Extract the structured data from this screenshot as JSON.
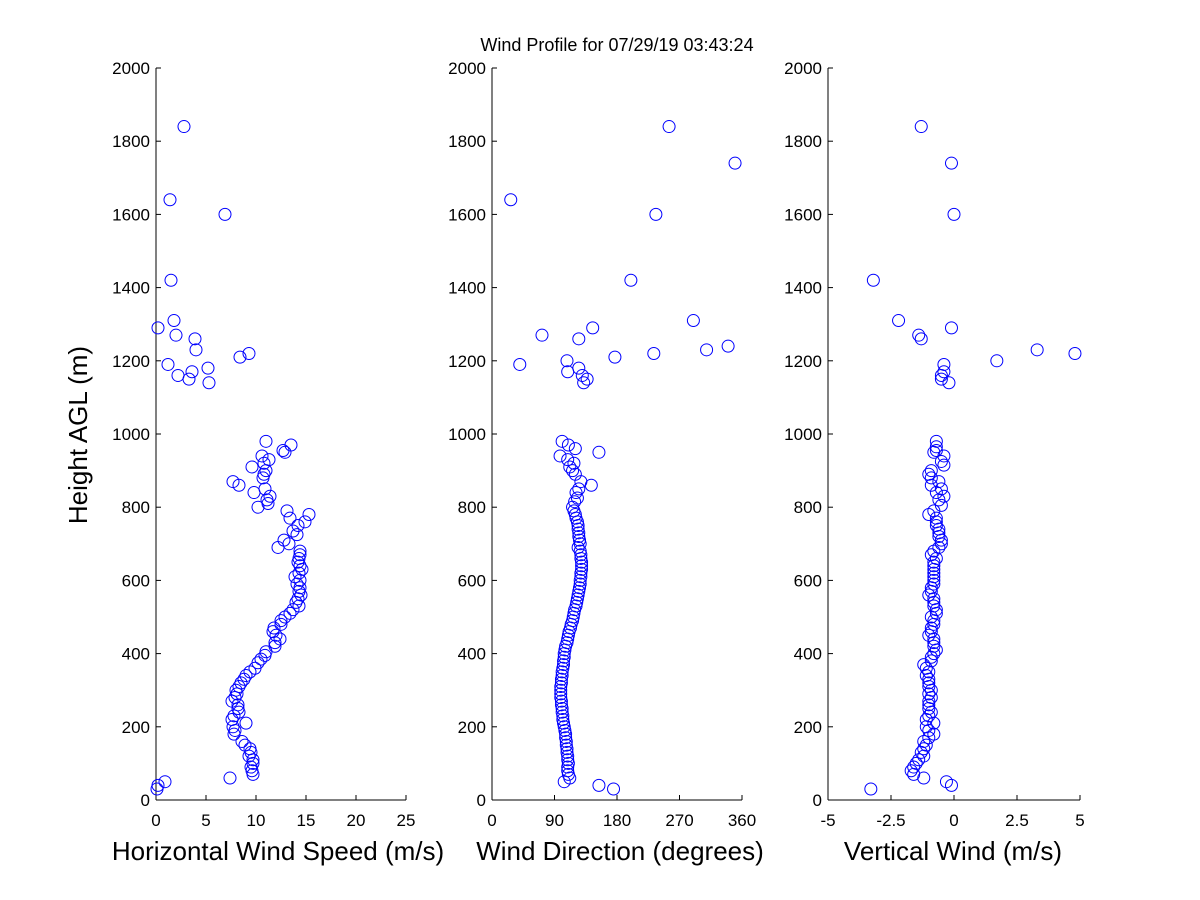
{
  "figure": {
    "title": "Wind Profile for  07/29/19 03:43:24",
    "background": "#ffffff",
    "marker_color": "#0000ff"
  },
  "chart_data": [
    {
      "type": "scatter",
      "xlabel": "Horizontal Wind Speed (m/s)",
      "ylabel": "Height AGL (m)",
      "xlim": [
        0,
        25
      ],
      "ylim": [
        0,
        2000
      ],
      "xticks": [
        0,
        5,
        10,
        15,
        20,
        25
      ],
      "yticks": [
        0,
        200,
        400,
        600,
        800,
        1000,
        1200,
        1400,
        1600,
        1800,
        2000
      ],
      "grid": false,
      "points": [
        [
          2.8,
          1840
        ],
        [
          6.9,
          1600
        ],
        [
          1.4,
          1640
        ],
        [
          1.5,
          1420
        ],
        [
          1.8,
          1310
        ],
        [
          0.2,
          1290
        ],
        [
          2.0,
          1270
        ],
        [
          3.9,
          1260
        ],
        [
          4.0,
          1230
        ],
        [
          9.3,
          1220
        ],
        [
          8.4,
          1210
        ],
        [
          1.2,
          1190
        ],
        [
          5.2,
          1180
        ],
        [
          3.6,
          1170
        ],
        [
          2.2,
          1160
        ],
        [
          3.3,
          1150
        ],
        [
          5.3,
          1140
        ],
        [
          11.0,
          980
        ],
        [
          13.5,
          970
        ],
        [
          12.7,
          955
        ],
        [
          12.9,
          950
        ],
        [
          10.6,
          940
        ],
        [
          11.3,
          930
        ],
        [
          10.8,
          920
        ],
        [
          9.6,
          910
        ],
        [
          11.0,
          900
        ],
        [
          10.8,
          890
        ],
        [
          10.7,
          880
        ],
        [
          7.7,
          870
        ],
        [
          8.3,
          860
        ],
        [
          10.9,
          850
        ],
        [
          9.8,
          840
        ],
        [
          11.4,
          830
        ],
        [
          11.1,
          820
        ],
        [
          11.2,
          810
        ],
        [
          10.2,
          800
        ],
        [
          13.1,
          790
        ],
        [
          15.3,
          780
        ],
        [
          13.4,
          770
        ],
        [
          14.9,
          760
        ],
        [
          14.2,
          750
        ],
        [
          13.7,
          735
        ],
        [
          14.1,
          725
        ],
        [
          12.8,
          710
        ],
        [
          13.3,
          700
        ],
        [
          12.2,
          690
        ],
        [
          14.4,
          680
        ],
        [
          14.4,
          670
        ],
        [
          14.3,
          660
        ],
        [
          14.2,
          650
        ],
        [
          14.4,
          640
        ],
        [
          14.6,
          630
        ],
        [
          14.3,
          620
        ],
        [
          13.9,
          610
        ],
        [
          14.4,
          600
        ],
        [
          14.1,
          590
        ],
        [
          14.4,
          580
        ],
        [
          14.3,
          570
        ],
        [
          14.5,
          560
        ],
        [
          14.2,
          550
        ],
        [
          14.0,
          540
        ],
        [
          14.3,
          530
        ],
        [
          13.7,
          520
        ],
        [
          13.4,
          510
        ],
        [
          12.9,
          500
        ],
        [
          12.5,
          490
        ],
        [
          12.5,
          480
        ],
        [
          11.8,
          470
        ],
        [
          11.7,
          460
        ],
        [
          12.0,
          450
        ],
        [
          12.4,
          440
        ],
        [
          11.9,
          430
        ],
        [
          11.9,
          420
        ],
        [
          11.0,
          405
        ],
        [
          10.9,
          395
        ],
        [
          10.5,
          385
        ],
        [
          10.2,
          375
        ],
        [
          9.9,
          360
        ],
        [
          9.4,
          350
        ],
        [
          9.0,
          340
        ],
        [
          8.8,
          330
        ],
        [
          8.5,
          320
        ],
        [
          8.3,
          310
        ],
        [
          8.0,
          300
        ],
        [
          8.1,
          290
        ],
        [
          7.9,
          280
        ],
        [
          7.6,
          270
        ],
        [
          8.2,
          260
        ],
        [
          8.2,
          250
        ],
        [
          8.3,
          240
        ],
        [
          7.8,
          230
        ],
        [
          7.6,
          220
        ],
        [
          9.0,
          210
        ],
        [
          7.7,
          200
        ],
        [
          7.9,
          190
        ],
        [
          7.8,
          180
        ],
        [
          8.6,
          160
        ],
        [
          8.9,
          150
        ],
        [
          9.4,
          140
        ],
        [
          9.5,
          130
        ],
        [
          9.3,
          120
        ],
        [
          9.7,
          110
        ],
        [
          9.7,
          100
        ],
        [
          9.5,
          90
        ],
        [
          9.6,
          80
        ],
        [
          9.7,
          70
        ],
        [
          7.4,
          60
        ],
        [
          0.9,
          50
        ],
        [
          0.2,
          40
        ],
        [
          0.1,
          30
        ]
      ]
    },
    {
      "type": "scatter",
      "xlabel": "Wind Direction (degrees)",
      "ylabel": "",
      "xlim": [
        0,
        360
      ],
      "ylim": [
        0,
        2000
      ],
      "xticks": [
        0,
        90,
        180,
        270,
        360
      ],
      "yticks": [
        0,
        200,
        400,
        600,
        800,
        1000,
        1200,
        1400,
        1600,
        1800,
        2000
      ],
      "grid": false,
      "points": [
        [
          255,
          1840
        ],
        [
          350,
          1740
        ],
        [
          27,
          1640
        ],
        [
          236,
          1600
        ],
        [
          200,
          1420
        ],
        [
          290,
          1310
        ],
        [
          145,
          1290
        ],
        [
          72,
          1270
        ],
        [
          125,
          1260
        ],
        [
          340,
          1240
        ],
        [
          309,
          1230
        ],
        [
          233,
          1220
        ],
        [
          177,
          1210
        ],
        [
          108,
          1200
        ],
        [
          40,
          1190
        ],
        [
          125,
          1180
        ],
        [
          109,
          1170
        ],
        [
          130,
          1160
        ],
        [
          137,
          1150
        ],
        [
          132,
          1140
        ],
        [
          101,
          980
        ],
        [
          110,
          970
        ],
        [
          120,
          960
        ],
        [
          154,
          950
        ],
        [
          98,
          940
        ],
        [
          109,
          930
        ],
        [
          118,
          920
        ],
        [
          112,
          910
        ],
        [
          116,
          900
        ],
        [
          120,
          890
        ],
        [
          128,
          870
        ],
        [
          143,
          860
        ],
        [
          125,
          850
        ],
        [
          121,
          840
        ],
        [
          123,
          825
        ],
        [
          119,
          815
        ],
        [
          116,
          800
        ],
        [
          118,
          790
        ],
        [
          120,
          780
        ],
        [
          121,
          770
        ],
        [
          123,
          760
        ],
        [
          124,
          750
        ],
        [
          124,
          740
        ],
        [
          125,
          730
        ],
        [
          125,
          720
        ],
        [
          126,
          710
        ],
        [
          127,
          700
        ],
        [
          124,
          690
        ],
        [
          127,
          680
        ],
        [
          128,
          670
        ],
        [
          128,
          660
        ],
        [
          129,
          650
        ],
        [
          129,
          640
        ],
        [
          129,
          630
        ],
        [
          128,
          620
        ],
        [
          128,
          610
        ],
        [
          127,
          600
        ],
        [
          127,
          590
        ],
        [
          126,
          580
        ],
        [
          125,
          570
        ],
        [
          124,
          560
        ],
        [
          123,
          550
        ],
        [
          122,
          540
        ],
        [
          121,
          530
        ],
        [
          119,
          520
        ],
        [
          118,
          510
        ],
        [
          117,
          500
        ],
        [
          116,
          490
        ],
        [
          114,
          480
        ],
        [
          113,
          470
        ],
        [
          111,
          460
        ],
        [
          110,
          450
        ],
        [
          109,
          440
        ],
        [
          108,
          430
        ],
        [
          106,
          420
        ],
        [
          105,
          410
        ],
        [
          104,
          400
        ],
        [
          104,
          390
        ],
        [
          103,
          380
        ],
        [
          103,
          370
        ],
        [
          102,
          360
        ],
        [
          101,
          350
        ],
        [
          101,
          340
        ],
        [
          100,
          330
        ],
        [
          100,
          320
        ],
        [
          99,
          310
        ],
        [
          99,
          300
        ],
        [
          99,
          290
        ],
        [
          99,
          280
        ],
        [
          100,
          270
        ],
        [
          100,
          260
        ],
        [
          101,
          250
        ],
        [
          101,
          240
        ],
        [
          102,
          230
        ],
        [
          102,
          220
        ],
        [
          103,
          210
        ],
        [
          104,
          200
        ],
        [
          105,
          190
        ],
        [
          106,
          180
        ],
        [
          106,
          170
        ],
        [
          107,
          160
        ],
        [
          107,
          150
        ],
        [
          108,
          140
        ],
        [
          108,
          130
        ],
        [
          109,
          120
        ],
        [
          109,
          110
        ],
        [
          110,
          100
        ],
        [
          109,
          90
        ],
        [
          109,
          80
        ],
        [
          110,
          70
        ],
        [
          112,
          60
        ],
        [
          104,
          50
        ],
        [
          154,
          40
        ],
        [
          175,
          30
        ]
      ]
    },
    {
      "type": "scatter",
      "xlabel": "Vertical Wind (m/s)",
      "ylabel": "",
      "xlim": [
        -5,
        5
      ],
      "ylim": [
        0,
        2000
      ],
      "xticks": [
        -5,
        -2.5,
        0,
        2.5,
        5
      ],
      "yticks": [
        0,
        200,
        400,
        600,
        800,
        1000,
        1200,
        1400,
        1600,
        1800,
        2000
      ],
      "grid": false,
      "points": [
        [
          -1.3,
          1840
        ],
        [
          -0.1,
          1740
        ],
        [
          0.0,
          1600
        ],
        [
          -3.2,
          1420
        ],
        [
          -2.2,
          1310
        ],
        [
          -0.1,
          1290
        ],
        [
          -1.4,
          1270
        ],
        [
          -1.3,
          1260
        ],
        [
          3.3,
          1230
        ],
        [
          4.8,
          1220
        ],
        [
          1.7,
          1200
        ],
        [
          -0.4,
          1190
        ],
        [
          -0.4,
          1170
        ],
        [
          -0.5,
          1160
        ],
        [
          -0.5,
          1150
        ],
        [
          -0.2,
          1140
        ],
        [
          -0.7,
          980
        ],
        [
          -0.7,
          965
        ],
        [
          -0.7,
          955
        ],
        [
          -0.8,
          950
        ],
        [
          -0.4,
          940
        ],
        [
          -0.5,
          925
        ],
        [
          -0.4,
          915
        ],
        [
          -0.9,
          900
        ],
        [
          -1.0,
          890
        ],
        [
          -0.9,
          880
        ],
        [
          -0.6,
          870
        ],
        [
          -0.9,
          860
        ],
        [
          -0.5,
          850
        ],
        [
          -0.7,
          840
        ],
        [
          -0.4,
          830
        ],
        [
          -0.6,
          820
        ],
        [
          -0.5,
          805
        ],
        [
          -0.8,
          790
        ],
        [
          -1.0,
          780
        ],
        [
          -0.7,
          770
        ],
        [
          -0.7,
          760
        ],
        [
          -0.7,
          750
        ],
        [
          -0.6,
          740
        ],
        [
          -0.6,
          730
        ],
        [
          -0.6,
          720
        ],
        [
          -0.5,
          710
        ],
        [
          -0.5,
          700
        ],
        [
          -0.6,
          690
        ],
        [
          -0.8,
          680
        ],
        [
          -0.9,
          670
        ],
        [
          -0.7,
          660
        ],
        [
          -0.8,
          650
        ],
        [
          -0.8,
          640
        ],
        [
          -0.8,
          630
        ],
        [
          -0.8,
          620
        ],
        [
          -0.8,
          610
        ],
        [
          -0.8,
          600
        ],
        [
          -0.8,
          590
        ],
        [
          -0.9,
          580
        ],
        [
          -0.9,
          570
        ],
        [
          -1.0,
          560
        ],
        [
          -0.8,
          550
        ],
        [
          -0.8,
          540
        ],
        [
          -0.8,
          530
        ],
        [
          -0.7,
          520
        ],
        [
          -0.7,
          510
        ],
        [
          -0.9,
          500
        ],
        [
          -0.8,
          490
        ],
        [
          -0.8,
          480
        ],
        [
          -0.9,
          470
        ],
        [
          -0.9,
          460
        ],
        [
          -1.0,
          450
        ],
        [
          -0.8,
          440
        ],
        [
          -0.8,
          430
        ],
        [
          -0.8,
          420
        ],
        [
          -0.7,
          410
        ],
        [
          -0.8,
          400
        ],
        [
          -0.9,
          390
        ],
        [
          -0.9,
          380
        ],
        [
          -1.2,
          370
        ],
        [
          -1.1,
          360
        ],
        [
          -1.0,
          350
        ],
        [
          -1.1,
          340
        ],
        [
          -1.0,
          330
        ],
        [
          -1.0,
          320
        ],
        [
          -1.0,
          310
        ],
        [
          -0.9,
          300
        ],
        [
          -1.0,
          290
        ],
        [
          -0.9,
          280
        ],
        [
          -1.0,
          270
        ],
        [
          -1.0,
          260
        ],
        [
          -1.0,
          250
        ],
        [
          -0.9,
          240
        ],
        [
          -1.0,
          230
        ],
        [
          -1.1,
          220
        ],
        [
          -0.8,
          210
        ],
        [
          -1.1,
          200
        ],
        [
          -1.0,
          190
        ],
        [
          -0.8,
          180
        ],
        [
          -1.0,
          170
        ],
        [
          -1.2,
          160
        ],
        [
          -1.1,
          150
        ],
        [
          -1.2,
          140
        ],
        [
          -1.3,
          130
        ],
        [
          -1.2,
          120
        ],
        [
          -1.4,
          110
        ],
        [
          -1.5,
          100
        ],
        [
          -1.6,
          90
        ],
        [
          -1.7,
          80
        ],
        [
          -1.6,
          70
        ],
        [
          -1.2,
          60
        ],
        [
          -0.3,
          50
        ],
        [
          -0.1,
          40
        ],
        [
          -3.3,
          30
        ]
      ]
    }
  ]
}
